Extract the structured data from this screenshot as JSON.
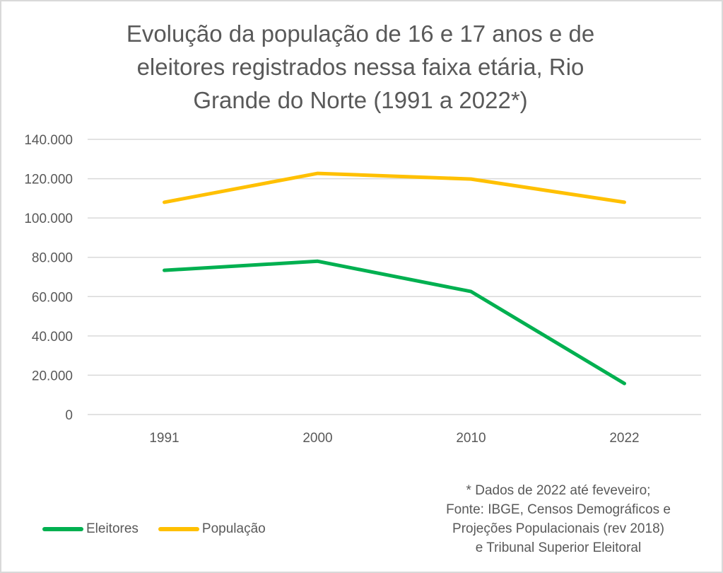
{
  "chart_data": {
    "type": "line",
    "title_lines": [
      "Evolução da população de 16 e 17 anos e de",
      "eleitores registrados nessa faixa etária, Rio",
      "Grande do Norte (1991 a 2022*)"
    ],
    "categories": [
      "1991",
      "2000",
      "2010",
      "2022"
    ],
    "series": [
      {
        "name": "Eleitores",
        "color": "#00b050",
        "values": [
          73400,
          78000,
          62600,
          15800
        ]
      },
      {
        "name": "População",
        "color": "#ffc000",
        "values": [
          108000,
          122700,
          119800,
          108000
        ]
      }
    ],
    "y_ticks": [
      {
        "value": 0,
        "label": "0"
      },
      {
        "value": 20000,
        "label": "20.000"
      },
      {
        "value": 40000,
        "label": "40.000"
      },
      {
        "value": 60000,
        "label": "60.000"
      },
      {
        "value": 80000,
        "label": "80.000"
      },
      {
        "value": 100000,
        "label": "100.000"
      },
      {
        "value": 120000,
        "label": "120.000"
      },
      {
        "value": 140000,
        "label": "140.000"
      }
    ],
    "ylim": [
      0,
      140000
    ],
    "xlabel": "",
    "ylabel": "",
    "grid": true,
    "legend_position": "bottom-left",
    "grid_color": "#d9d9d9",
    "text_color": "#595959"
  },
  "footnote_lines": [
    "* Dados de 2022 até feveveiro;",
    "Fonte: IBGE, Censos Demográficos e",
    "Projeções Populacionais (rev 2018)",
    "e Tribunal Superior Eleitoral"
  ]
}
